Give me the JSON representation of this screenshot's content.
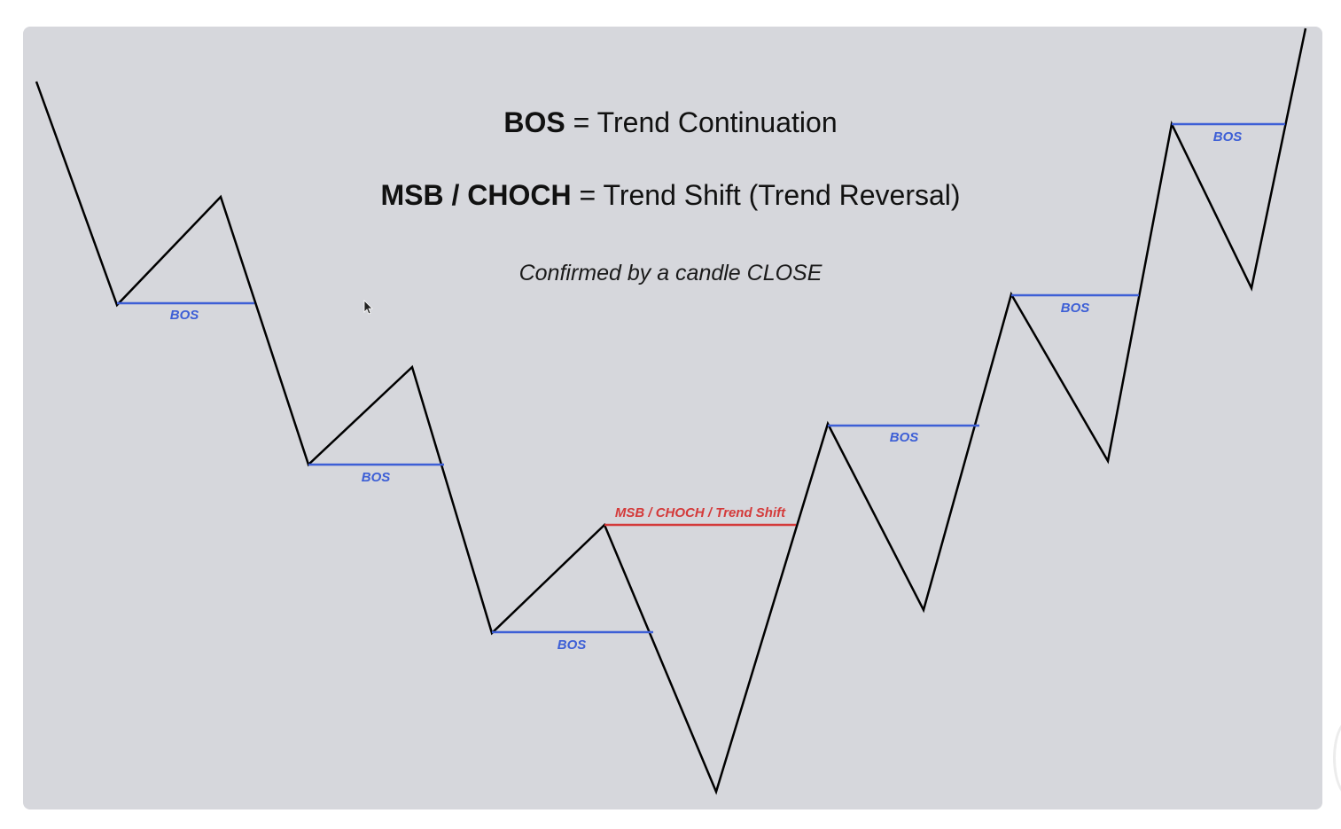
{
  "headline": {
    "bos_term": "BOS",
    "bos_definition": "= Trend Continuation",
    "shift_term": "MSB / CHOCH",
    "shift_definition": "= Trend Shift (Trend Reversal)",
    "confirmation": "Confirmed by a candle CLOSE"
  },
  "colors": {
    "background": "#d6d7dc",
    "price_path": "#000000",
    "bos": "#3d5fd6",
    "shift": "#d43a3a"
  },
  "levels": [
    {
      "id": "bos-1",
      "label": "BOS",
      "kind": "bos"
    },
    {
      "id": "bos-2",
      "label": "BOS",
      "kind": "bos"
    },
    {
      "id": "bos-3",
      "label": "BOS",
      "kind": "bos"
    },
    {
      "id": "shift",
      "label": "MSB / CHOCH / Trend Shift",
      "kind": "shift"
    },
    {
      "id": "bos-4",
      "label": "BOS",
      "kind": "bos"
    },
    {
      "id": "bos-5",
      "label": "BOS",
      "kind": "bos"
    },
    {
      "id": "bos-6",
      "label": "BOS",
      "kind": "bos"
    }
  ]
}
